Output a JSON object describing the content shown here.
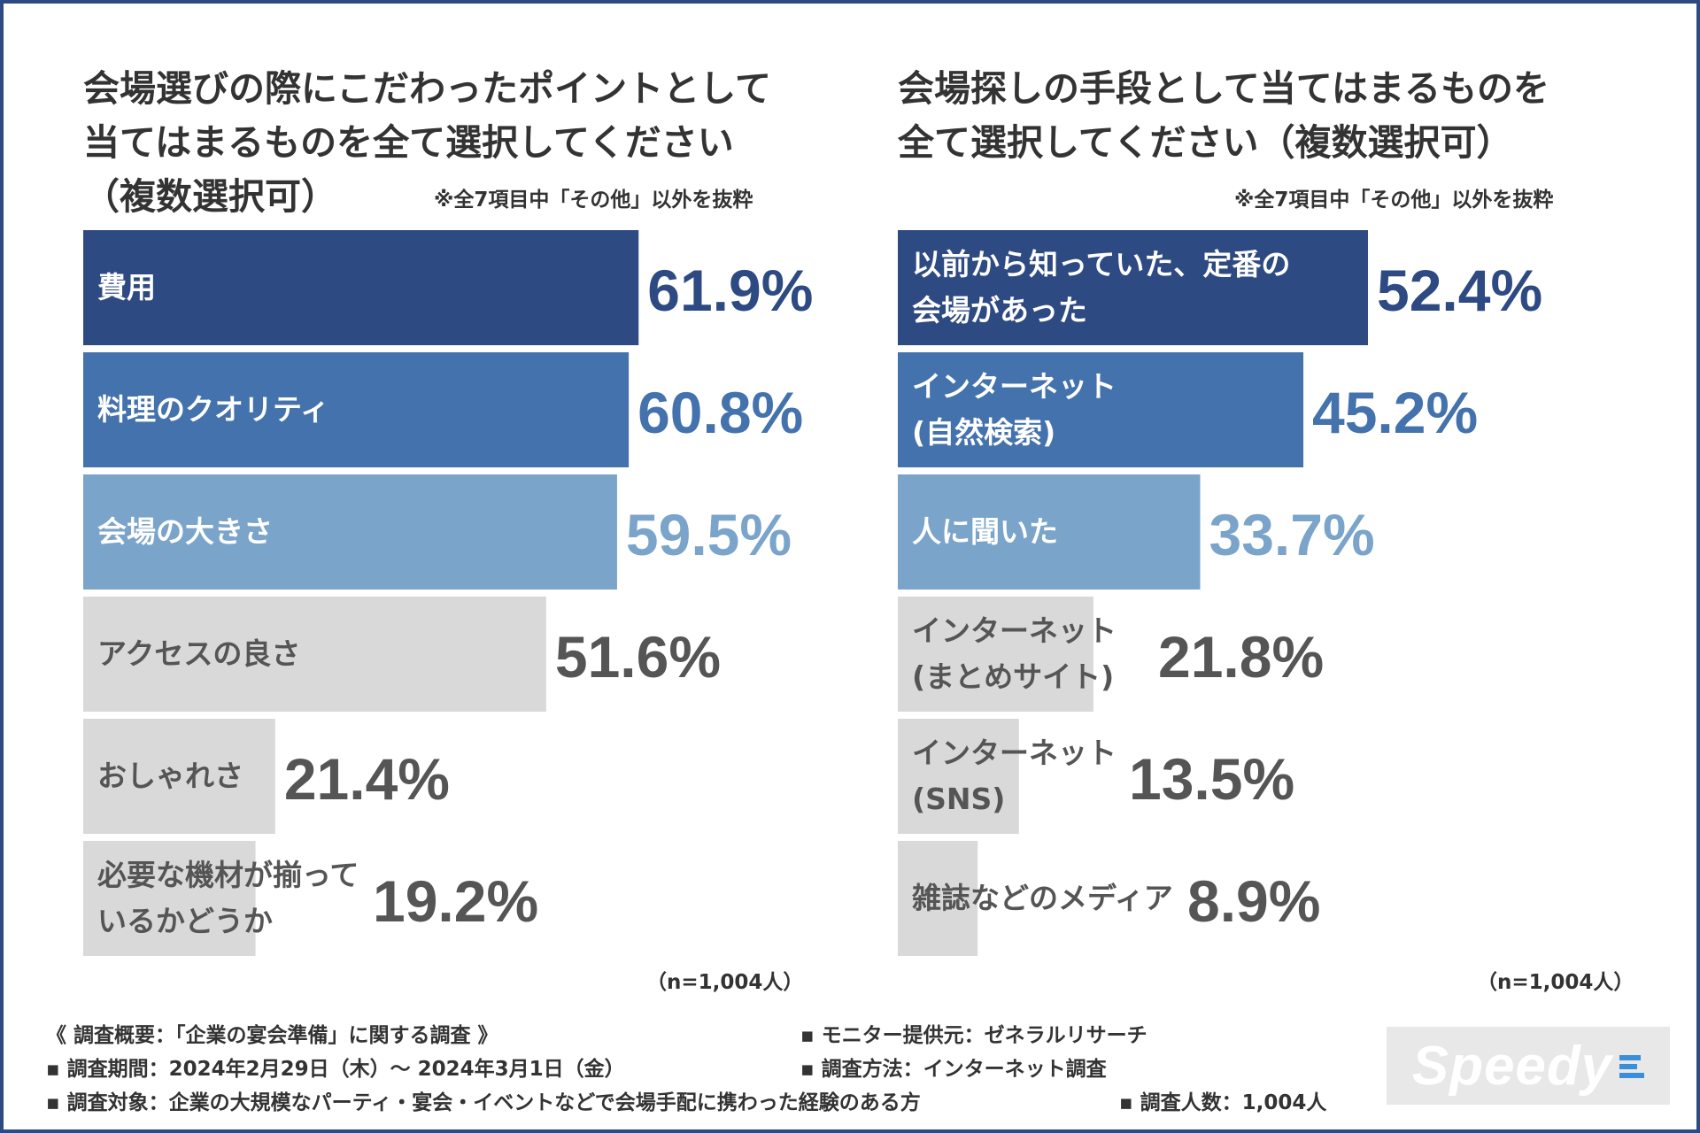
{
  "left": {
    "title": [
      "会場選びの際にこだわったポイントとして",
      "当てはまるものを全て選択してください",
      "（複数選択可）"
    ],
    "note": "※全7項目中「その他」以外を抜粋",
    "sample": "（n=1,004人）"
  },
  "right": {
    "title": [
      "会場探しの手段として当てはまるものを",
      "全て選択してください（複数選択可）"
    ],
    "note": "※全7項目中「その他」以外を抜粋",
    "sample": "（n=1,004人）"
  },
  "chart_data": [
    {
      "type": "bar",
      "orientation": "horizontal",
      "title": "会場選びの際にこだわったポイントとして当てはまるものを全て選択してください（複数選択可）",
      "categories": [
        [
          "費用"
        ],
        [
          "料理のクオリティ"
        ],
        [
          "会場の大きさ"
        ],
        [
          "アクセスの良さ"
        ],
        [
          "おしゃれさ"
        ],
        [
          "必要な機材が揃って",
          "いるかどうか"
        ]
      ],
      "values": [
        61.9,
        60.8,
        59.5,
        51.6,
        21.4,
        19.2
      ],
      "value_labels": [
        "61.9%",
        "60.8%",
        "59.5%",
        "51.6%",
        "21.4%",
        "19.2%"
      ],
      "unit": "%",
      "xlim": [
        0,
        75
      ],
      "colors": [
        "#2e4a82",
        "#4472ad",
        "#7aa4c9",
        "#d9d9d9",
        "#d9d9d9",
        "#d9d9d9"
      ],
      "label_colors": [
        "#ffffff",
        "#ffffff",
        "#ffffff",
        "#555555",
        "#555555",
        "#555555"
      ],
      "value_colors": [
        "#2e4a82",
        "#4472ad",
        "#7aa4c9",
        "#555555",
        "#555555",
        "#555555"
      ]
    },
    {
      "type": "bar",
      "orientation": "horizontal",
      "title": "会場探しの手段として当てはまるものを全て選択してください（複数選択可）",
      "categories": [
        [
          "以前から知っていた、定番の",
          "会場があった"
        ],
        [
          "インターネット",
          "(自然検索)"
        ],
        [
          "人に聞いた"
        ],
        [
          "インターネット",
          "(まとめサイト)"
        ],
        [
          "インターネット",
          "(SNS)"
        ],
        [
          "雑誌などのメディア"
        ]
      ],
      "values": [
        52.4,
        45.2,
        33.7,
        21.8,
        13.5,
        8.9
      ],
      "value_labels": [
        "52.4%",
        "45.2%",
        "33.7%",
        "21.8%",
        "13.5%",
        "8.9%"
      ],
      "unit": "%",
      "xlim": [
        0,
        75
      ],
      "colors": [
        "#2e4a82",
        "#4472ad",
        "#7aa4c9",
        "#d9d9d9",
        "#d9d9d9",
        "#d9d9d9"
      ],
      "label_colors": [
        "#ffffff",
        "#ffffff",
        "#ffffff",
        "#555555",
        "#555555",
        "#555555"
      ],
      "value_colors": [
        "#2e4a82",
        "#4472ad",
        "#7aa4c9",
        "#555555",
        "#555555",
        "#555555"
      ]
    }
  ],
  "footer": {
    "overview": "《 調査概要：「企業の宴会準備」に関する調査 》",
    "period": "▪ 調査期間：2024年2月29日（木）～ 2024年3月1日（金）",
    "target": "▪ 調査対象：企業の大規模なパーティ・宴会・イベントなどで会場手配に携わった経験のある方",
    "provider": "▪ モニター提供元：ゼネラルリサーチ",
    "method": "▪ 調査方法：インターネット調査",
    "count": "▪ 調査人数：1,004人"
  },
  "logo": {
    "text": "Speedy",
    "accent": "#3b8fd8"
  }
}
